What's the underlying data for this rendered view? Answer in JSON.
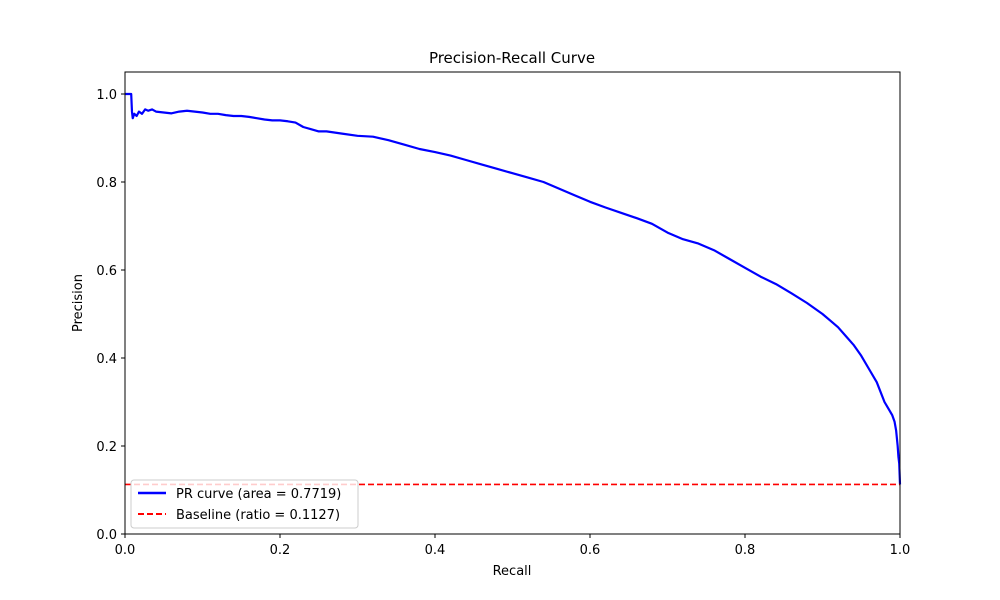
{
  "chart_data": {
    "type": "line",
    "title": "Precision-Recall Curve",
    "xlabel": "Recall",
    "ylabel": "Precision",
    "xlim": [
      0.0,
      1.0
    ],
    "ylim": [
      0.0,
      1.05
    ],
    "xticks": [
      "0.0",
      "0.2",
      "0.4",
      "0.6",
      "0.8",
      "1.0"
    ],
    "yticks": [
      "0.0",
      "0.2",
      "0.4",
      "0.6",
      "0.8",
      "1.0"
    ],
    "grid": false,
    "legend_position": "lower-left",
    "series": [
      {
        "name": "PR curve (area = 0.7719)",
        "color": "#0000ff",
        "style": "solid",
        "x": [
          0.0,
          0.008,
          0.009,
          0.01,
          0.012,
          0.015,
          0.018,
          0.022,
          0.026,
          0.03,
          0.035,
          0.04,
          0.05,
          0.06,
          0.07,
          0.08,
          0.09,
          0.1,
          0.11,
          0.12,
          0.13,
          0.14,
          0.15,
          0.16,
          0.17,
          0.18,
          0.19,
          0.2,
          0.21,
          0.22,
          0.23,
          0.24,
          0.25,
          0.26,
          0.28,
          0.3,
          0.32,
          0.34,
          0.36,
          0.38,
          0.4,
          0.42,
          0.44,
          0.46,
          0.48,
          0.5,
          0.52,
          0.54,
          0.56,
          0.58,
          0.6,
          0.62,
          0.64,
          0.66,
          0.68,
          0.7,
          0.72,
          0.74,
          0.76,
          0.78,
          0.8,
          0.82,
          0.84,
          0.86,
          0.88,
          0.9,
          0.91,
          0.92,
          0.93,
          0.94,
          0.95,
          0.96,
          0.97,
          0.98,
          0.985,
          0.99,
          0.993,
          0.995,
          0.997,
          0.998,
          0.999,
          1.0
        ],
        "y": [
          1.0,
          1.0,
          0.96,
          0.945,
          0.955,
          0.95,
          0.96,
          0.955,
          0.965,
          0.962,
          0.965,
          0.96,
          0.958,
          0.956,
          0.96,
          0.962,
          0.96,
          0.958,
          0.955,
          0.955,
          0.952,
          0.95,
          0.95,
          0.948,
          0.945,
          0.942,
          0.94,
          0.94,
          0.938,
          0.935,
          0.925,
          0.92,
          0.915,
          0.915,
          0.91,
          0.905,
          0.903,
          0.895,
          0.885,
          0.875,
          0.868,
          0.86,
          0.85,
          0.84,
          0.83,
          0.82,
          0.81,
          0.8,
          0.785,
          0.77,
          0.755,
          0.742,
          0.73,
          0.718,
          0.705,
          0.685,
          0.67,
          0.66,
          0.645,
          0.625,
          0.605,
          0.585,
          0.568,
          0.547,
          0.525,
          0.5,
          0.485,
          0.47,
          0.45,
          0.43,
          0.405,
          0.375,
          0.345,
          0.3,
          0.285,
          0.27,
          0.255,
          0.235,
          0.2,
          0.175,
          0.16,
          0.1127
        ]
      },
      {
        "name": "Baseline (ratio = 0.1127)",
        "color": "#ff0000",
        "style": "dashed",
        "x": [
          0.0,
          1.0
        ],
        "y": [
          0.1127,
          0.1127
        ]
      }
    ]
  }
}
